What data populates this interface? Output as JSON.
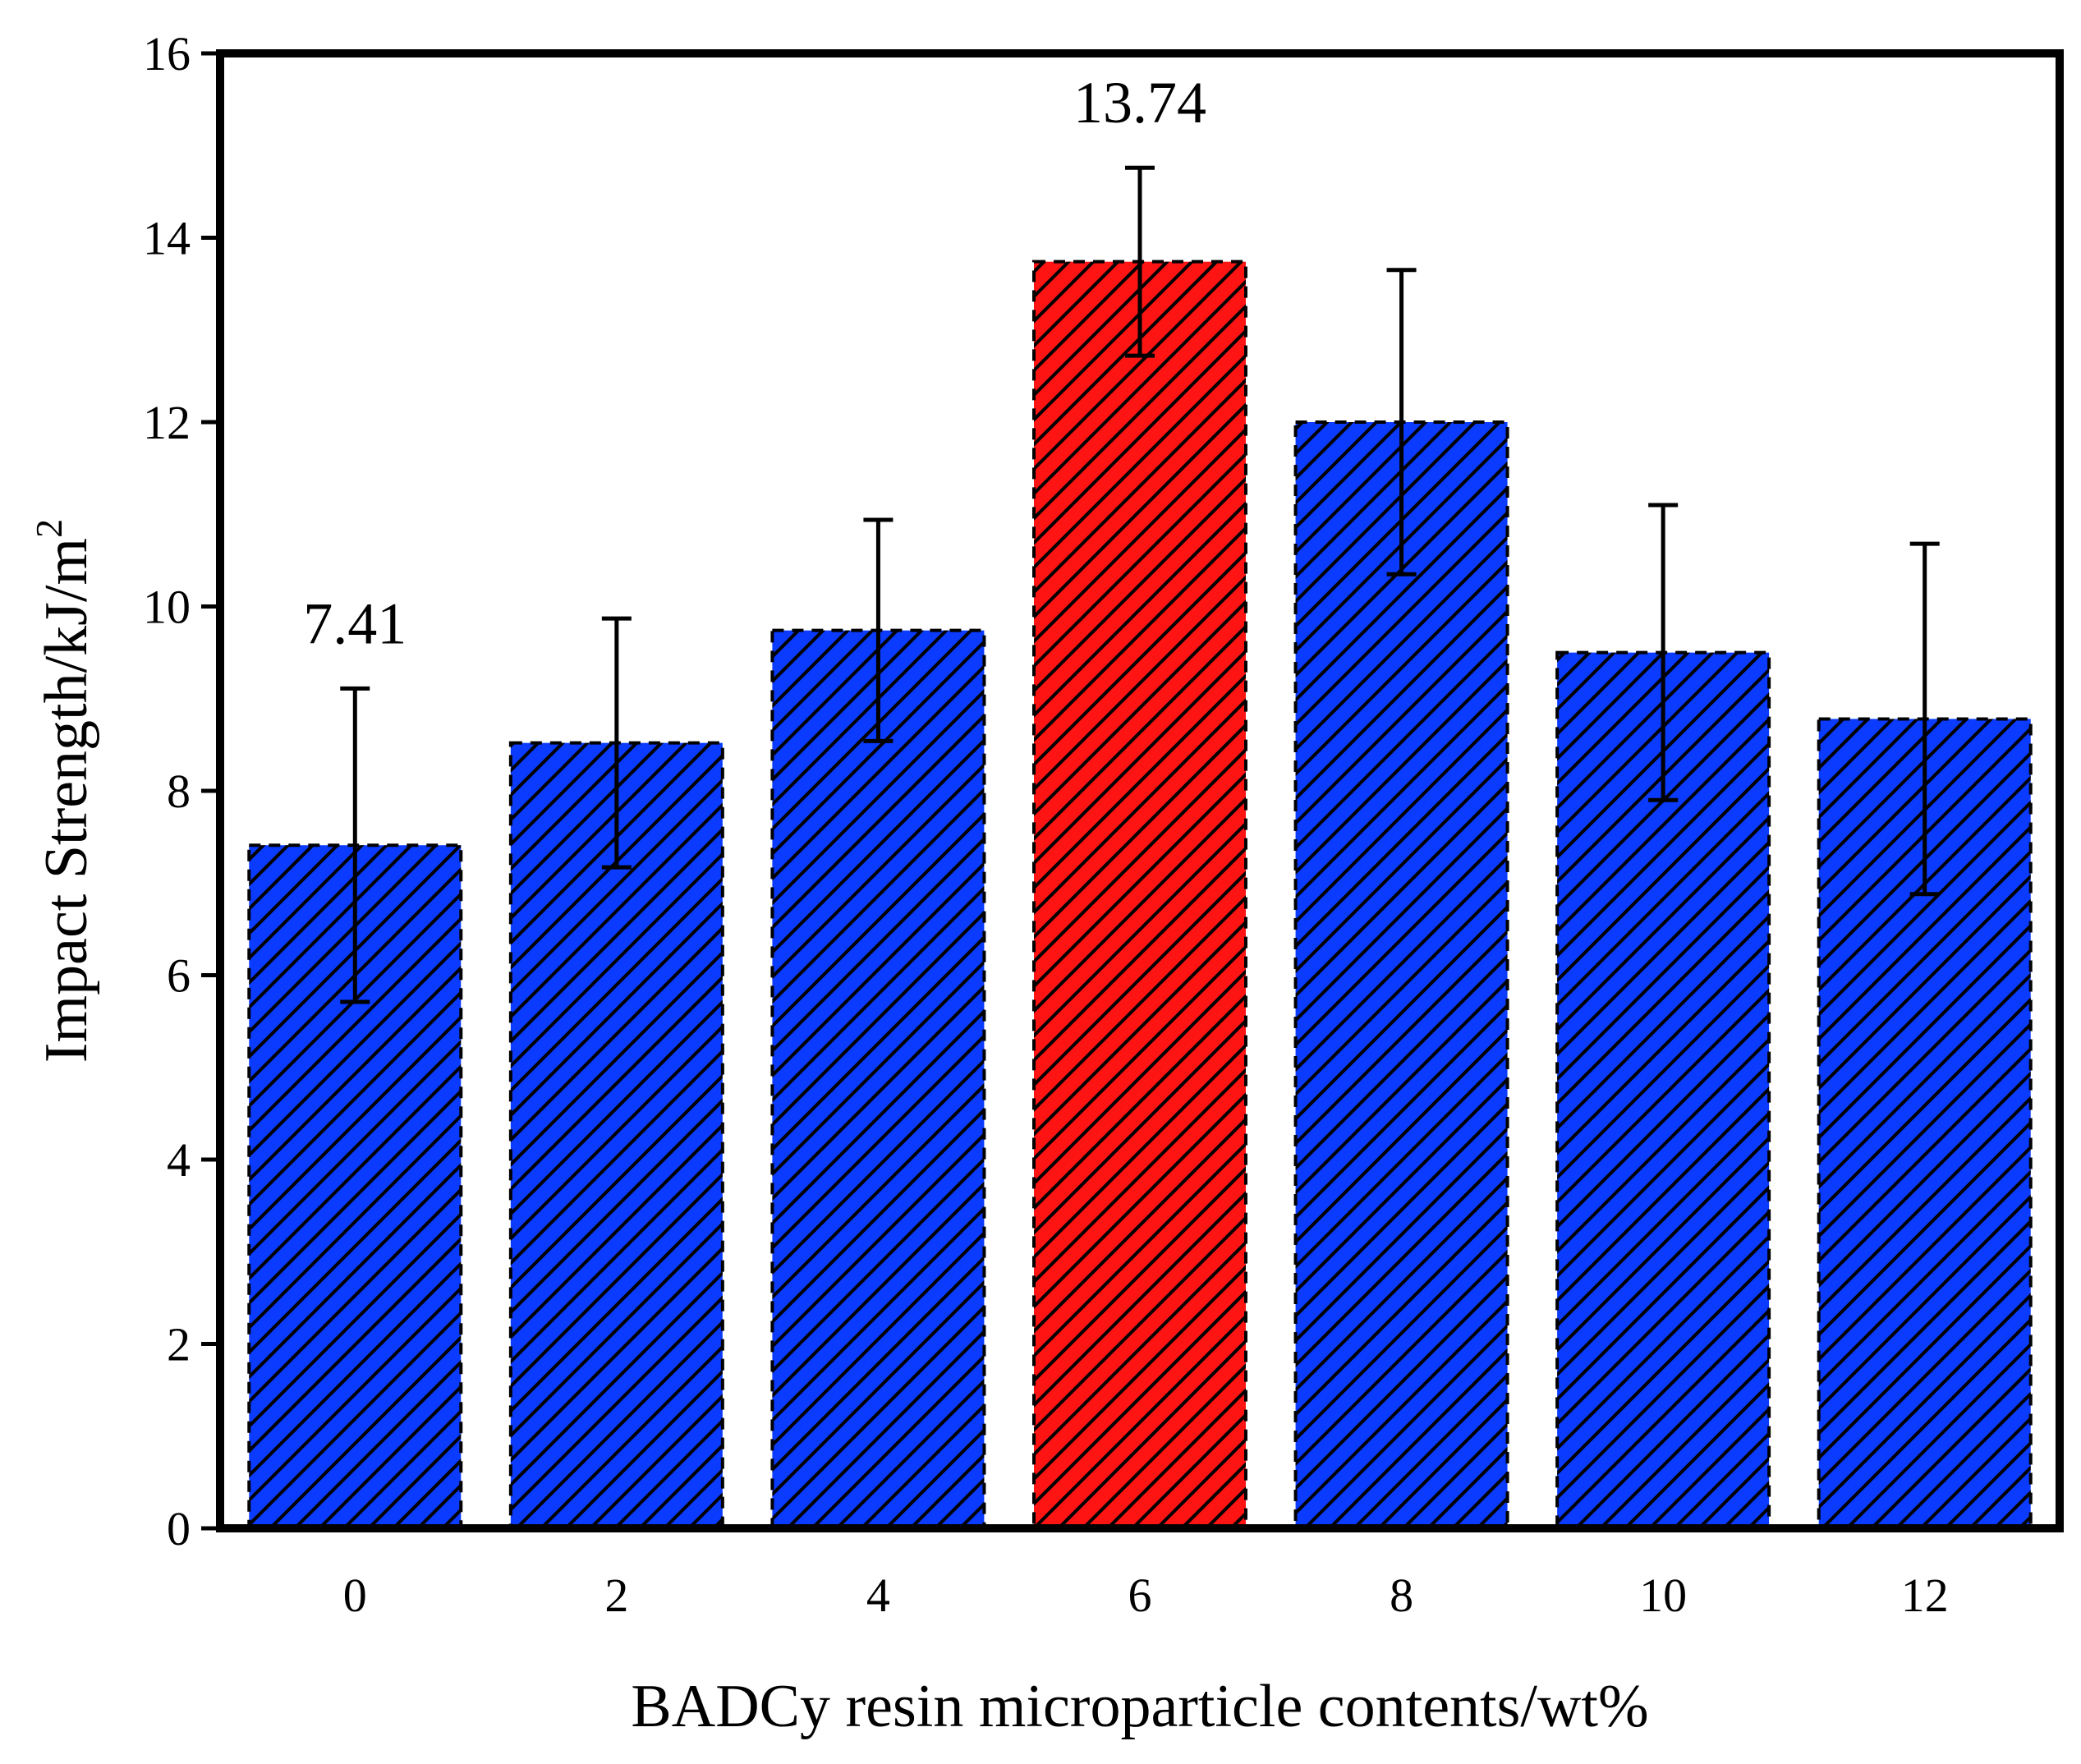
{
  "chart_data": {
    "type": "bar",
    "title": "",
    "xlabel": "BADCy resin microparticle contents/wt%",
    "ylabel": "Impact Strength/kJ/m",
    "ylabel_superscript": "2",
    "categories": [
      "0",
      "2",
      "4",
      "6",
      "8",
      "10",
      "12"
    ],
    "values": [
      7.41,
      8.52,
      9.74,
      13.74,
      12.0,
      9.5,
      8.78
    ],
    "errors": [
      1.7,
      1.35,
      1.2,
      1.02,
      1.65,
      1.6,
      1.9
    ],
    "highlight_index": 3,
    "data_labels": [
      {
        "index": 0,
        "text": "7.41"
      },
      {
        "index": 3,
        "text": "13.74"
      }
    ],
    "ylim": [
      0,
      16
    ],
    "yticks": [
      "0",
      "2",
      "4",
      "6",
      "8",
      "10",
      "12",
      "14",
      "16"
    ],
    "colors": {
      "bar": "#0a3bff",
      "highlight": "#ff1414",
      "hatch": "#000000",
      "error": "#000000"
    },
    "grid": false,
    "legend": "none"
  }
}
